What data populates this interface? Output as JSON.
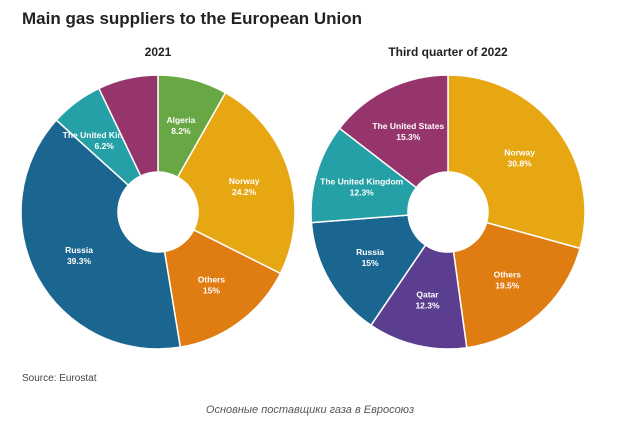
{
  "title": "Main gas suppliers to the European Union",
  "source": "Source: Eurostat",
  "caption": "Основные поставщики газа в Евросоюз",
  "chart_data": [
    {
      "type": "pie",
      "subtitle": "2021",
      "slices": [
        {
          "name": "Algeria",
          "label": "8.2%",
          "value": 8.2,
          "color": "#68a844"
        },
        {
          "name": "Norway",
          "label": "24.2%",
          "value": 24.2,
          "color": "#e6a712"
        },
        {
          "name": "Others",
          "label": "15%",
          "value": 15,
          "color": "#e07d12"
        },
        {
          "name": "Russia",
          "label": "39.3%",
          "value": 39.3,
          "color": "#1b6591"
        },
        {
          "name": "The United Kingdom",
          "label": "6.2%",
          "value": 6.2,
          "color": "#24a0a6"
        },
        {
          "name": "",
          "label": "",
          "value": 7.1,
          "color": "#96356b"
        }
      ]
    },
    {
      "type": "pie",
      "subtitle": "Third quarter of 2022",
      "slices": [
        {
          "name": "Norway",
          "label": "30.8%",
          "value": 30.8,
          "color": "#e6a712"
        },
        {
          "name": "Others",
          "label": "19.5%",
          "value": 19.5,
          "color": "#e07d12"
        },
        {
          "name": "Qatar",
          "label": "12.3%",
          "value": 12.3,
          "color": "#5b3e8f"
        },
        {
          "name": "Russia",
          "label": "15%",
          "value": 15,
          "color": "#1b6591"
        },
        {
          "name": "The United Kingdom",
          "label": "12.3%",
          "value": 12.3,
          "color": "#24a0a6"
        },
        {
          "name": "The United States",
          "label": "15.3%",
          "value": 15.3,
          "color": "#96356b"
        }
      ]
    }
  ]
}
